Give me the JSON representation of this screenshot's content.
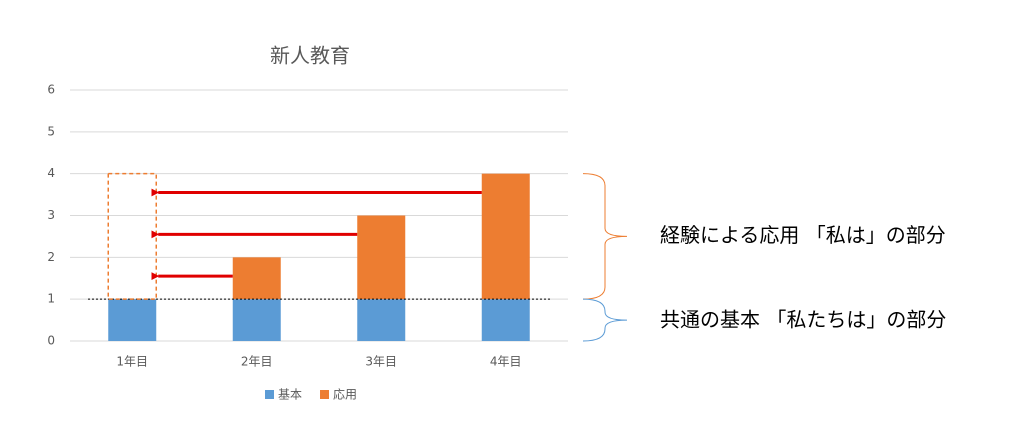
{
  "chart_data": {
    "type": "stacked_bar",
    "title": "新人教育",
    "categories": [
      "1年目",
      "2年目",
      "3年目",
      "4年目"
    ],
    "series": [
      {
        "name": "基本",
        "color": "#5b9bd5",
        "values": [
          1,
          1,
          1,
          1
        ]
      },
      {
        "name": "応用",
        "color": "#ed7d31",
        "values": [
          0,
          1,
          2,
          3
        ]
      }
    ],
    "ylim": [
      0,
      6
    ],
    "yticks": [
      0,
      1,
      2,
      3,
      4,
      5,
      6
    ],
    "grid": true,
    "annotations": [
      "経験による応用 「私は」の部分",
      "共通の基本 「私たちは」の部分"
    ]
  }
}
